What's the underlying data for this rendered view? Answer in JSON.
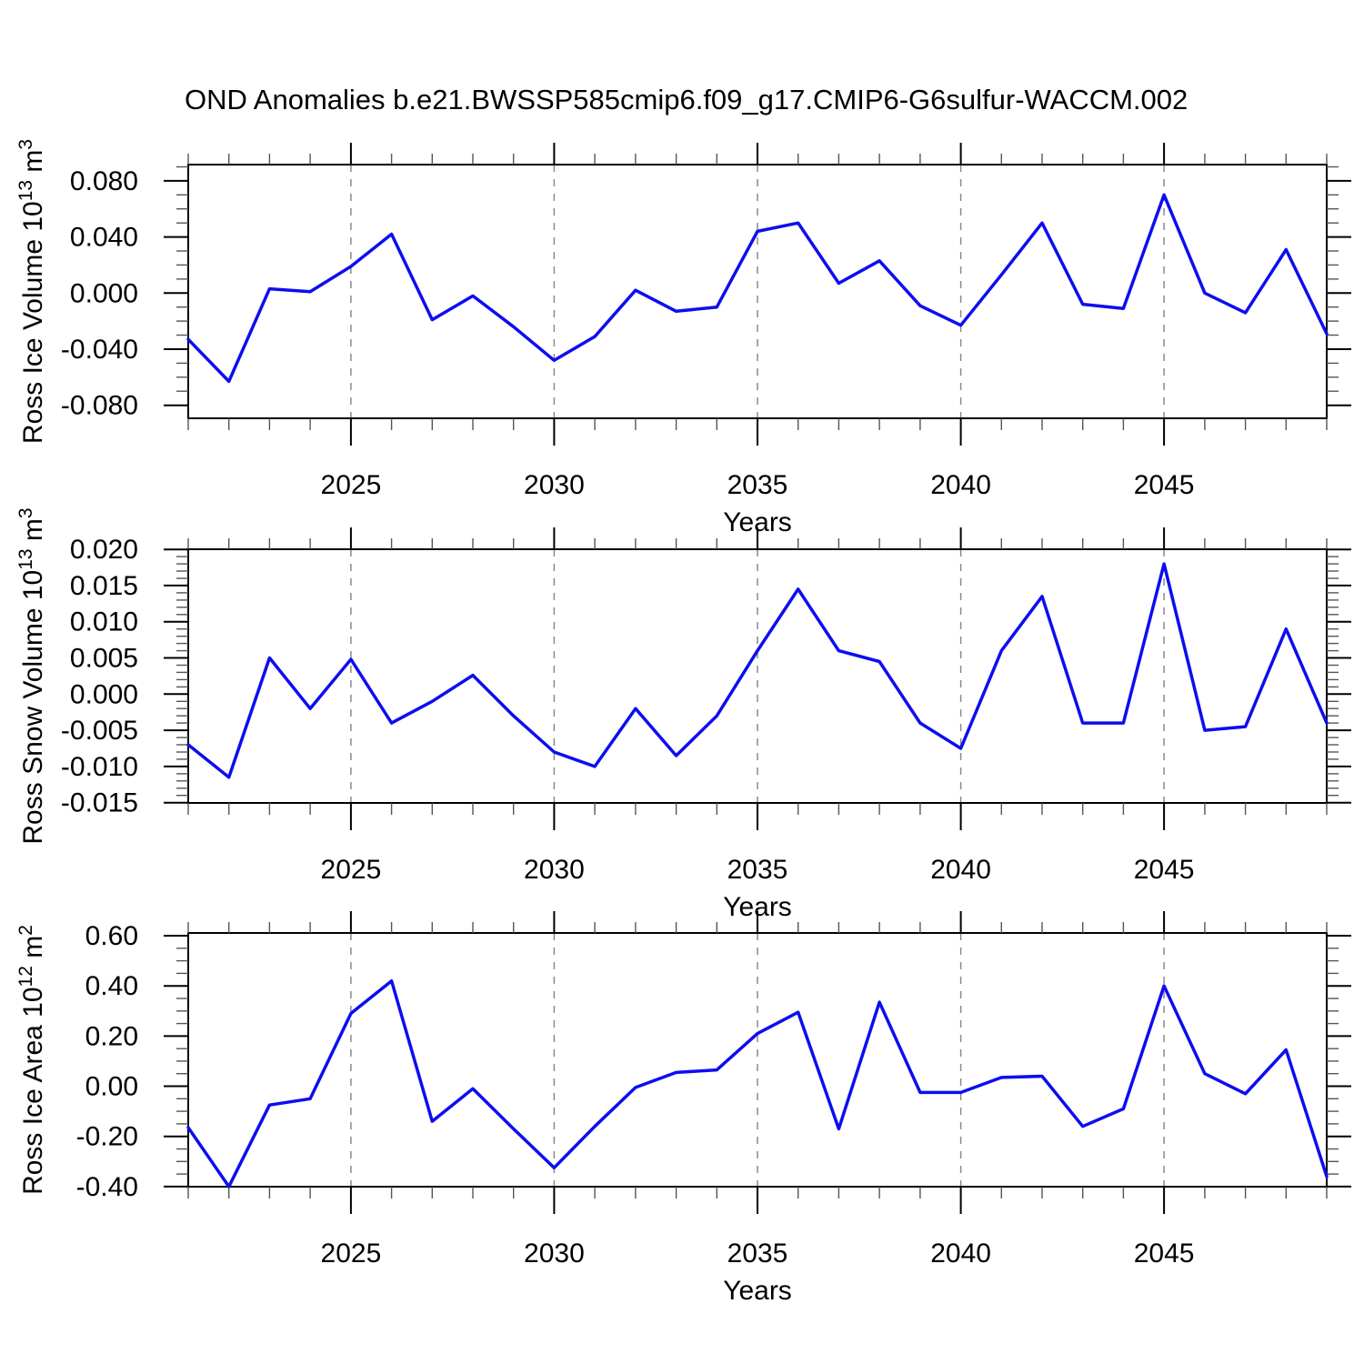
{
  "title": "OND Anomalies b.e21.BWSSP585cmip6.f09_g17.CMIP6-G6sulfur-WACCM.002",
  "colors": {
    "line": "#0d0df0",
    "frame": "#000000",
    "grid": "#8a8a8a",
    "minor_tick": "#555555",
    "background": "#ffffff"
  },
  "chart_data": [
    {
      "type": "line",
      "id": "ross-ice-volume",
      "ylabel": "Ross Ice Volume 10^13 m^3",
      "ylabel_parts": [
        {
          "t": "Ross Ice Volume 10"
        },
        {
          "t": "13",
          "sup": true
        },
        {
          "t": " m",
          "sup": false
        },
        {
          "t": "3",
          "sup": true
        }
      ],
      "xlabel": "Years",
      "x_range": [
        2021,
        2049
      ],
      "x_major_ticks": [
        2025,
        2030,
        2035,
        2040,
        2045
      ],
      "x_minor_step": 1,
      "y_range": [
        -0.0893,
        0.0916
      ],
      "y_major_ticks": [
        0.08,
        0.04,
        0.0,
        -0.04,
        -0.08
      ],
      "y_tick_labels": [
        "0.080",
        "0.040",
        "0.000",
        "-0.040",
        "-0.080"
      ],
      "y_minor_step": 0.01,
      "grid": "vertical-dashed-at-major-x",
      "legend": "none",
      "x": [
        2021,
        2022,
        2023,
        2024,
        2025,
        2026,
        2027,
        2028,
        2029,
        2030,
        2031,
        2032,
        2033,
        2034,
        2035,
        2036,
        2037,
        2038,
        2039,
        2040,
        2041,
        2042,
        2043,
        2044,
        2045,
        2046,
        2047,
        2048,
        2049
      ],
      "y": [
        -0.033,
        -0.063,
        0.003,
        0.001,
        0.019,
        0.042,
        -0.019,
        -0.002,
        -0.024,
        -0.048,
        -0.031,
        0.002,
        -0.013,
        -0.01,
        0.044,
        0.05,
        0.007,
        0.023,
        -0.009,
        -0.023,
        0.013,
        0.05,
        -0.008,
        -0.011,
        0.07,
        0.0,
        -0.014,
        0.031,
        -0.029
      ]
    },
    {
      "type": "line",
      "id": "ross-snow-volume",
      "ylabel": "Ross Snow Volume 10^13 m^3",
      "ylabel_parts": [
        {
          "t": "Ross Snow Volume 10"
        },
        {
          "t": "13",
          "sup": true
        },
        {
          "t": " m",
          "sup": false
        },
        {
          "t": "3",
          "sup": true
        }
      ],
      "xlabel": "Years",
      "x_range": [
        2021,
        2049
      ],
      "x_major_ticks": [
        2025,
        2030,
        2035,
        2040,
        2045
      ],
      "x_minor_step": 1,
      "y_range": [
        -0.01504,
        0.02002
      ],
      "y_major_ticks": [
        0.02,
        0.015,
        0.01,
        0.005,
        0.0,
        -0.005,
        -0.01,
        -0.015
      ],
      "y_tick_labels": [
        "0.020",
        "0.015",
        "0.010",
        "0.005",
        "0.000",
        "-0.005",
        "-0.010",
        "-0.015"
      ],
      "y_minor_step": 0.001,
      "grid": "vertical-dashed-at-major-x",
      "legend": "none",
      "x": [
        2021,
        2022,
        2023,
        2024,
        2025,
        2026,
        2027,
        2028,
        2029,
        2030,
        2031,
        2032,
        2033,
        2034,
        2035,
        2036,
        2037,
        2038,
        2039,
        2040,
        2041,
        2042,
        2043,
        2044,
        2045,
        2046,
        2047,
        2048,
        2049
      ],
      "y": [
        -0.007,
        -0.0115,
        0.005,
        -0.002,
        0.0048,
        -0.004,
        -0.001,
        0.0026,
        -0.003,
        -0.008,
        -0.01,
        -0.002,
        -0.0085,
        -0.003,
        0.006,
        0.0145,
        0.006,
        0.0045,
        -0.004,
        -0.0075,
        0.006,
        0.0135,
        -0.004,
        -0.004,
        0.018,
        -0.005,
        -0.0045,
        0.009,
        -0.004
      ]
    },
    {
      "type": "line",
      "id": "ross-ice-area",
      "ylabel": "Ross Ice Area 10^12 m^2",
      "ylabel_parts": [
        {
          "t": "Ross Ice Area 10"
        },
        {
          "t": "12",
          "sup": true
        },
        {
          "t": " m",
          "sup": false
        },
        {
          "t": "2",
          "sup": true
        }
      ],
      "xlabel": "Years",
      "x_range": [
        2021,
        2049
      ],
      "x_major_ticks": [
        2025,
        2030,
        2035,
        2040,
        2045
      ],
      "x_minor_step": 1,
      "y_range": [
        -0.4005,
        0.611
      ],
      "y_major_ticks": [
        0.6,
        0.4,
        0.2,
        0.0,
        -0.2,
        -0.4
      ],
      "y_tick_labels": [
        "0.60",
        "0.40",
        "0.20",
        "0.00",
        "-0.20",
        "-0.40"
      ],
      "y_minor_step": 0.05,
      "grid": "vertical-dashed-at-major-x",
      "legend": "none",
      "x": [
        2021,
        2022,
        2023,
        2024,
        2025,
        2026,
        2027,
        2028,
        2029,
        2030,
        2031,
        2032,
        2033,
        2034,
        2035,
        2036,
        2037,
        2038,
        2039,
        2040,
        2041,
        2042,
        2043,
        2044,
        2045,
        2046,
        2047,
        2048,
        2049
      ],
      "y": [
        -0.165,
        -0.4,
        -0.075,
        -0.05,
        0.29,
        0.42,
        -0.14,
        -0.01,
        -0.17,
        -0.325,
        -0.16,
        -0.005,
        0.055,
        0.065,
        0.21,
        0.295,
        -0.17,
        0.335,
        -0.025,
        -0.025,
        0.035,
        0.04,
        -0.16,
        -0.09,
        0.4,
        0.05,
        -0.03,
        0.145,
        -0.36
      ]
    }
  ]
}
